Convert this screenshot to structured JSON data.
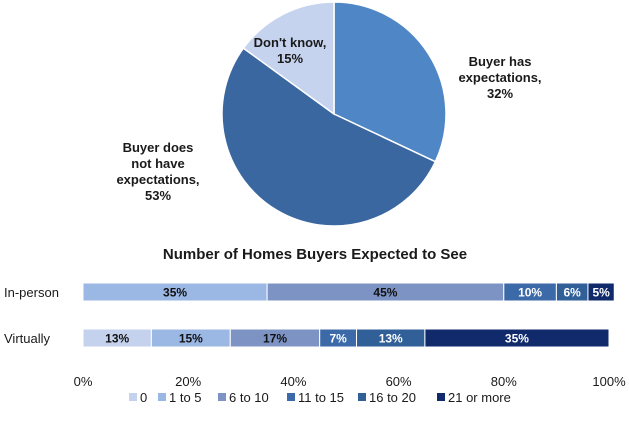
{
  "chart_data": [
    {
      "type": "pie",
      "slices": [
        {
          "label_lines": [
            "Buyer has",
            "expectations,"
          ],
          "value": 32,
          "value_text": "32%",
          "color": "#4f86c6"
        },
        {
          "label_lines": [
            "Buyer does",
            "not have",
            "expectations,"
          ],
          "value": 53,
          "value_text": "53%",
          "color": "#3a67a0"
        },
        {
          "label_lines": [
            "Don't know,"
          ],
          "value": 15,
          "value_text": "15%",
          "color": "#c6d3ef"
        }
      ]
    },
    {
      "type": "bar",
      "orientation": "horizontal",
      "stacked": true,
      "title": "Number of Homes Buyers Expected to See",
      "categories": [
        "In-person",
        "Virtually"
      ],
      "series": [
        {
          "name": "0",
          "color": "#c5d2ee",
          "values": [
            0,
            13
          ]
        },
        {
          "name": "1 to 5",
          "color": "#9bb7e3",
          "values": [
            35,
            15
          ]
        },
        {
          "name": "6 to 10",
          "color": "#7c93c4",
          "values": [
            45,
            17
          ]
        },
        {
          "name": "11 to 15",
          "color": "#3c69a8",
          "values": [
            10,
            7
          ]
        },
        {
          "name": "16 to 20",
          "color": "#315f98",
          "values": [
            6,
            13
          ]
        },
        {
          "name": "21 or more",
          "color": "#112a6b",
          "values": [
            5,
            35
          ]
        }
      ],
      "xlim": [
        0,
        100
      ],
      "ticks": [
        "0%",
        "20%",
        "40%",
        "60%",
        "80%",
        "100%"
      ],
      "legend_position": "bottom"
    }
  ]
}
